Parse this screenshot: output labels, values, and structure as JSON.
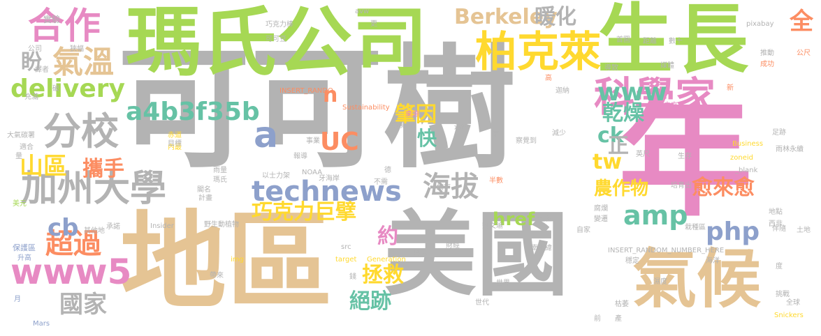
{
  "colors": {
    "background": "#ffffff",
    "gray": "#b3b3b3",
    "green": "#a6d854",
    "tan": "#e5c494",
    "pink": "#e78ac3",
    "blue": "#8da0cb",
    "orange": "#fc8d62",
    "teal": "#66c2a5",
    "yellow": "#ffd92f"
  },
  "words": [
    {
      "text": "可可樹",
      "color": "gray"
    },
    {
      "text": "瑪氏公司",
      "color": "green"
    },
    {
      "text": "生長",
      "color": "green"
    },
    {
      "text": "年",
      "color": "pink"
    },
    {
      "text": "地區",
      "color": "tan"
    },
    {
      "text": "美國",
      "color": "gray"
    },
    {
      "text": "氣候",
      "color": "tan"
    },
    {
      "text": "合作",
      "color": "pink"
    },
    {
      "text": "氣溫",
      "color": "tan"
    },
    {
      "text": "柏克萊",
      "color": "yellow"
    },
    {
      "text": "科學家",
      "color": "pink"
    },
    {
      "text": "delivery",
      "color": "green"
    },
    {
      "text": "分校",
      "color": "gray"
    },
    {
      "text": "加州大學",
      "color": "gray"
    },
    {
      "text": "technews",
      "color": "blue"
    },
    {
      "text": "www5",
      "color": "pink"
    },
    {
      "text": "a4b3f35b",
      "color": "teal"
    },
    {
      "text": "www",
      "color": "teal"
    },
    {
      "text": "Berkeley",
      "color": "tan"
    },
    {
      "text": "暖化",
      "color": "gray"
    },
    {
      "text": "全",
      "color": "orange"
    },
    {
      "text": "ck",
      "color": "teal"
    },
    {
      "text": "肇因",
      "color": "yellow"
    },
    {
      "text": "乾燥",
      "color": "teal"
    },
    {
      "text": "UC",
      "color": "orange"
    },
    {
      "text": "tw",
      "color": "yellow"
    },
    {
      "text": "amp",
      "color": "teal"
    },
    {
      "text": "php",
      "color": "blue"
    },
    {
      "text": "海拔",
      "color": "gray"
    },
    {
      "text": "巧克力巨擘",
      "color": "yellow"
    },
    {
      "text": "農作物",
      "color": "yellow"
    },
    {
      "text": "愈來愈",
      "color": "orange"
    },
    {
      "text": "超過",
      "color": "orange"
    },
    {
      "text": "cb",
      "color": "blue"
    },
    {
      "text": "山區",
      "color": "yellow"
    },
    {
      "text": "攜手",
      "color": "orange"
    },
    {
      "text": "國家",
      "color": "gray"
    },
    {
      "text": "拯救",
      "color": "yellow"
    },
    {
      "text": "絕跡",
      "color": "teal"
    },
    {
      "text": "約",
      "color": "pink"
    },
    {
      "text": "快",
      "color": "teal"
    },
    {
      "text": "href",
      "color": "green"
    },
    {
      "text": "a",
      "color": "blue"
    },
    {
      "text": "n",
      "color": "orange"
    },
    {
      "text": "正",
      "color": "gray"
    },
    {
      "text": "盼",
      "color": "gray"
    },
    {
      "text": "實驗",
      "color": "gray"
    },
    {
      "text": "公司",
      "color": "gray"
    },
    {
      "text": "狹幅",
      "color": "gray"
    },
    {
      "text": "譯者",
      "color": "gray"
    },
    {
      "text": "破",
      "color": "gray"
    },
    {
      "text": "充滿",
      "color": "gray"
    },
    {
      "text": "大氣碳署",
      "color": "gray"
    },
    {
      "text": "適合",
      "color": "gray"
    },
    {
      "text": "量",
      "color": "gray"
    },
    {
      "text": "美元",
      "color": "green"
    },
    {
      "text": "保護區",
      "color": "blue"
    },
    {
      "text": "升高",
      "color": "blue"
    },
    {
      "text": "月",
      "color": "blue"
    },
    {
      "text": "Mars",
      "color": "blue"
    },
    {
      "text": "avw",
      "color": "gray"
    },
    {
      "text": "巧克力棒",
      "color": "gray"
    },
    {
      "text": "可可豆",
      "color": "gray"
    },
    {
      "text": "更",
      "color": "gray"
    },
    {
      "text": "pixabay",
      "color": "gray"
    },
    {
      "text": "首圖",
      "color": "gray"
    },
    {
      "text": "距離",
      "color": "gray"
    },
    {
      "text": "數十",
      "color": "gray"
    },
    {
      "text": "推動",
      "color": "gray"
    },
    {
      "text": "公尺",
      "color": "orange"
    },
    {
      "text": "成功",
      "color": "orange"
    },
    {
      "text": "媒體",
      "color": "gray"
    },
    {
      "text": "導致",
      "color": "gray"
    },
    {
      "text": "高",
      "color": "orange"
    },
    {
      "text": "迦納",
      "color": "gray"
    },
    {
      "text": "新",
      "color": "orange"
    },
    {
      "text": "未來",
      "color": "pink"
    },
    {
      "text": "INSERT_RANDO",
      "color": "orange"
    },
    {
      "text": "Sustainability",
      "color": "orange"
    },
    {
      "text": "來源",
      "color": "pink"
    },
    {
      "text": "環境",
      "color": "gray"
    },
    {
      "text": "NOAA",
      "color": "gray"
    },
    {
      "text": "事業",
      "color": "gray"
    },
    {
      "text": "報導",
      "color": "gray"
    },
    {
      "text": "赤道",
      "color": "yellow"
    },
    {
      "text": "內最",
      "color": "yellow"
    },
    {
      "text": "目標",
      "color": "gray"
    },
    {
      "text": "雨量",
      "color": "gray"
    },
    {
      "text": "瑪氏",
      "color": "gray"
    },
    {
      "text": "閣名",
      "color": "gray"
    },
    {
      "text": "計畫",
      "color": "gray"
    },
    {
      "text": "以士力架",
      "color": "gray"
    },
    {
      "text": "牙海岸",
      "color": "gray"
    },
    {
      "text": "德",
      "color": "gray"
    },
    {
      "text": "不需",
      "color": "gray"
    },
    {
      "text": "旗下",
      "color": "gray"
    },
    {
      "text": "遷移",
      "color": "gray"
    },
    {
      "text": "兩",
      "color": "gray"
    },
    {
      "text": "察覺到",
      "color": "gray"
    },
    {
      "text": "減少",
      "color": "gray"
    },
    {
      "text": "英尺",
      "color": "gray"
    },
    {
      "text": "足跡",
      "color": "gray"
    },
    {
      "text": "Business",
      "color": "yellow"
    },
    {
      "text": "雨林",
      "color": "gray"
    },
    {
      "text": "永續",
      "color": "gray"
    },
    {
      "text": "zoneid",
      "color": "yellow"
    },
    {
      "text": "_blank",
      "color": "gray"
    },
    {
      "text": "生存",
      "color": "gray"
    },
    {
      "text": "培育出",
      "color": "gray"
    },
    {
      "text": "半數",
      "color": "orange"
    },
    {
      "text": "地點",
      "color": "gray"
    },
    {
      "text": "西非",
      "color": "gray"
    },
    {
      "text": "伴隨",
      "color": "gray"
    },
    {
      "text": "土地",
      "color": "gray"
    },
    {
      "text": "腐爛",
      "color": "gray"
    },
    {
      "text": "變遷",
      "color": "gray"
    },
    {
      "text": "自家",
      "color": "gray"
    },
    {
      "text": "栽種區",
      "color": "gray"
    },
    {
      "text": "INSERT_RANDOM_NUMBER_HERE",
      "color": "gray"
    },
    {
      "text": "穩定",
      "color": "gray"
    },
    {
      "text": "海洋",
      "color": "gray"
    },
    {
      "text": "度",
      "color": "gray"
    },
    {
      "text": "南北緯",
      "color": "gray"
    },
    {
      "text": "劉文瑜",
      "color": "gray"
    },
    {
      "text": "財經",
      "color": "gray"
    },
    {
      "text": "種植",
      "color": "gray"
    },
    {
      "text": "野生動植物",
      "color": "gray"
    },
    {
      "text": "Insider",
      "color": "gray"
    },
    {
      "text": "其他地",
      "color": "gray"
    },
    {
      "text": "承諾",
      "color": "gray"
    },
    {
      "text": "src",
      "color": "gray"
    },
    {
      "text": "img",
      "color": "yellow"
    },
    {
      "text": "target",
      "color": "yellow"
    },
    {
      "text": "Generation",
      "color": "yellow"
    },
    {
      "text": "投入",
      "color": "gray"
    },
    {
      "text": "錢",
      "color": "gray"
    },
    {
      "text": "帶來",
      "color": "gray"
    },
    {
      "text": "世界",
      "color": "gray"
    },
    {
      "text": "世代",
      "color": "gray"
    },
    {
      "text": "前",
      "color": "gray"
    },
    {
      "text": "產",
      "color": "gray"
    },
    {
      "text": "枯萎",
      "color": "gray"
    },
    {
      "text": "挑戰",
      "color": "gray"
    },
    {
      "text": "全球",
      "color": "gray"
    },
    {
      "text": "Snickers",
      "color": "yellow"
    },
    {
      "text": "濕度",
      "color": "gray"
    }
  ]
}
